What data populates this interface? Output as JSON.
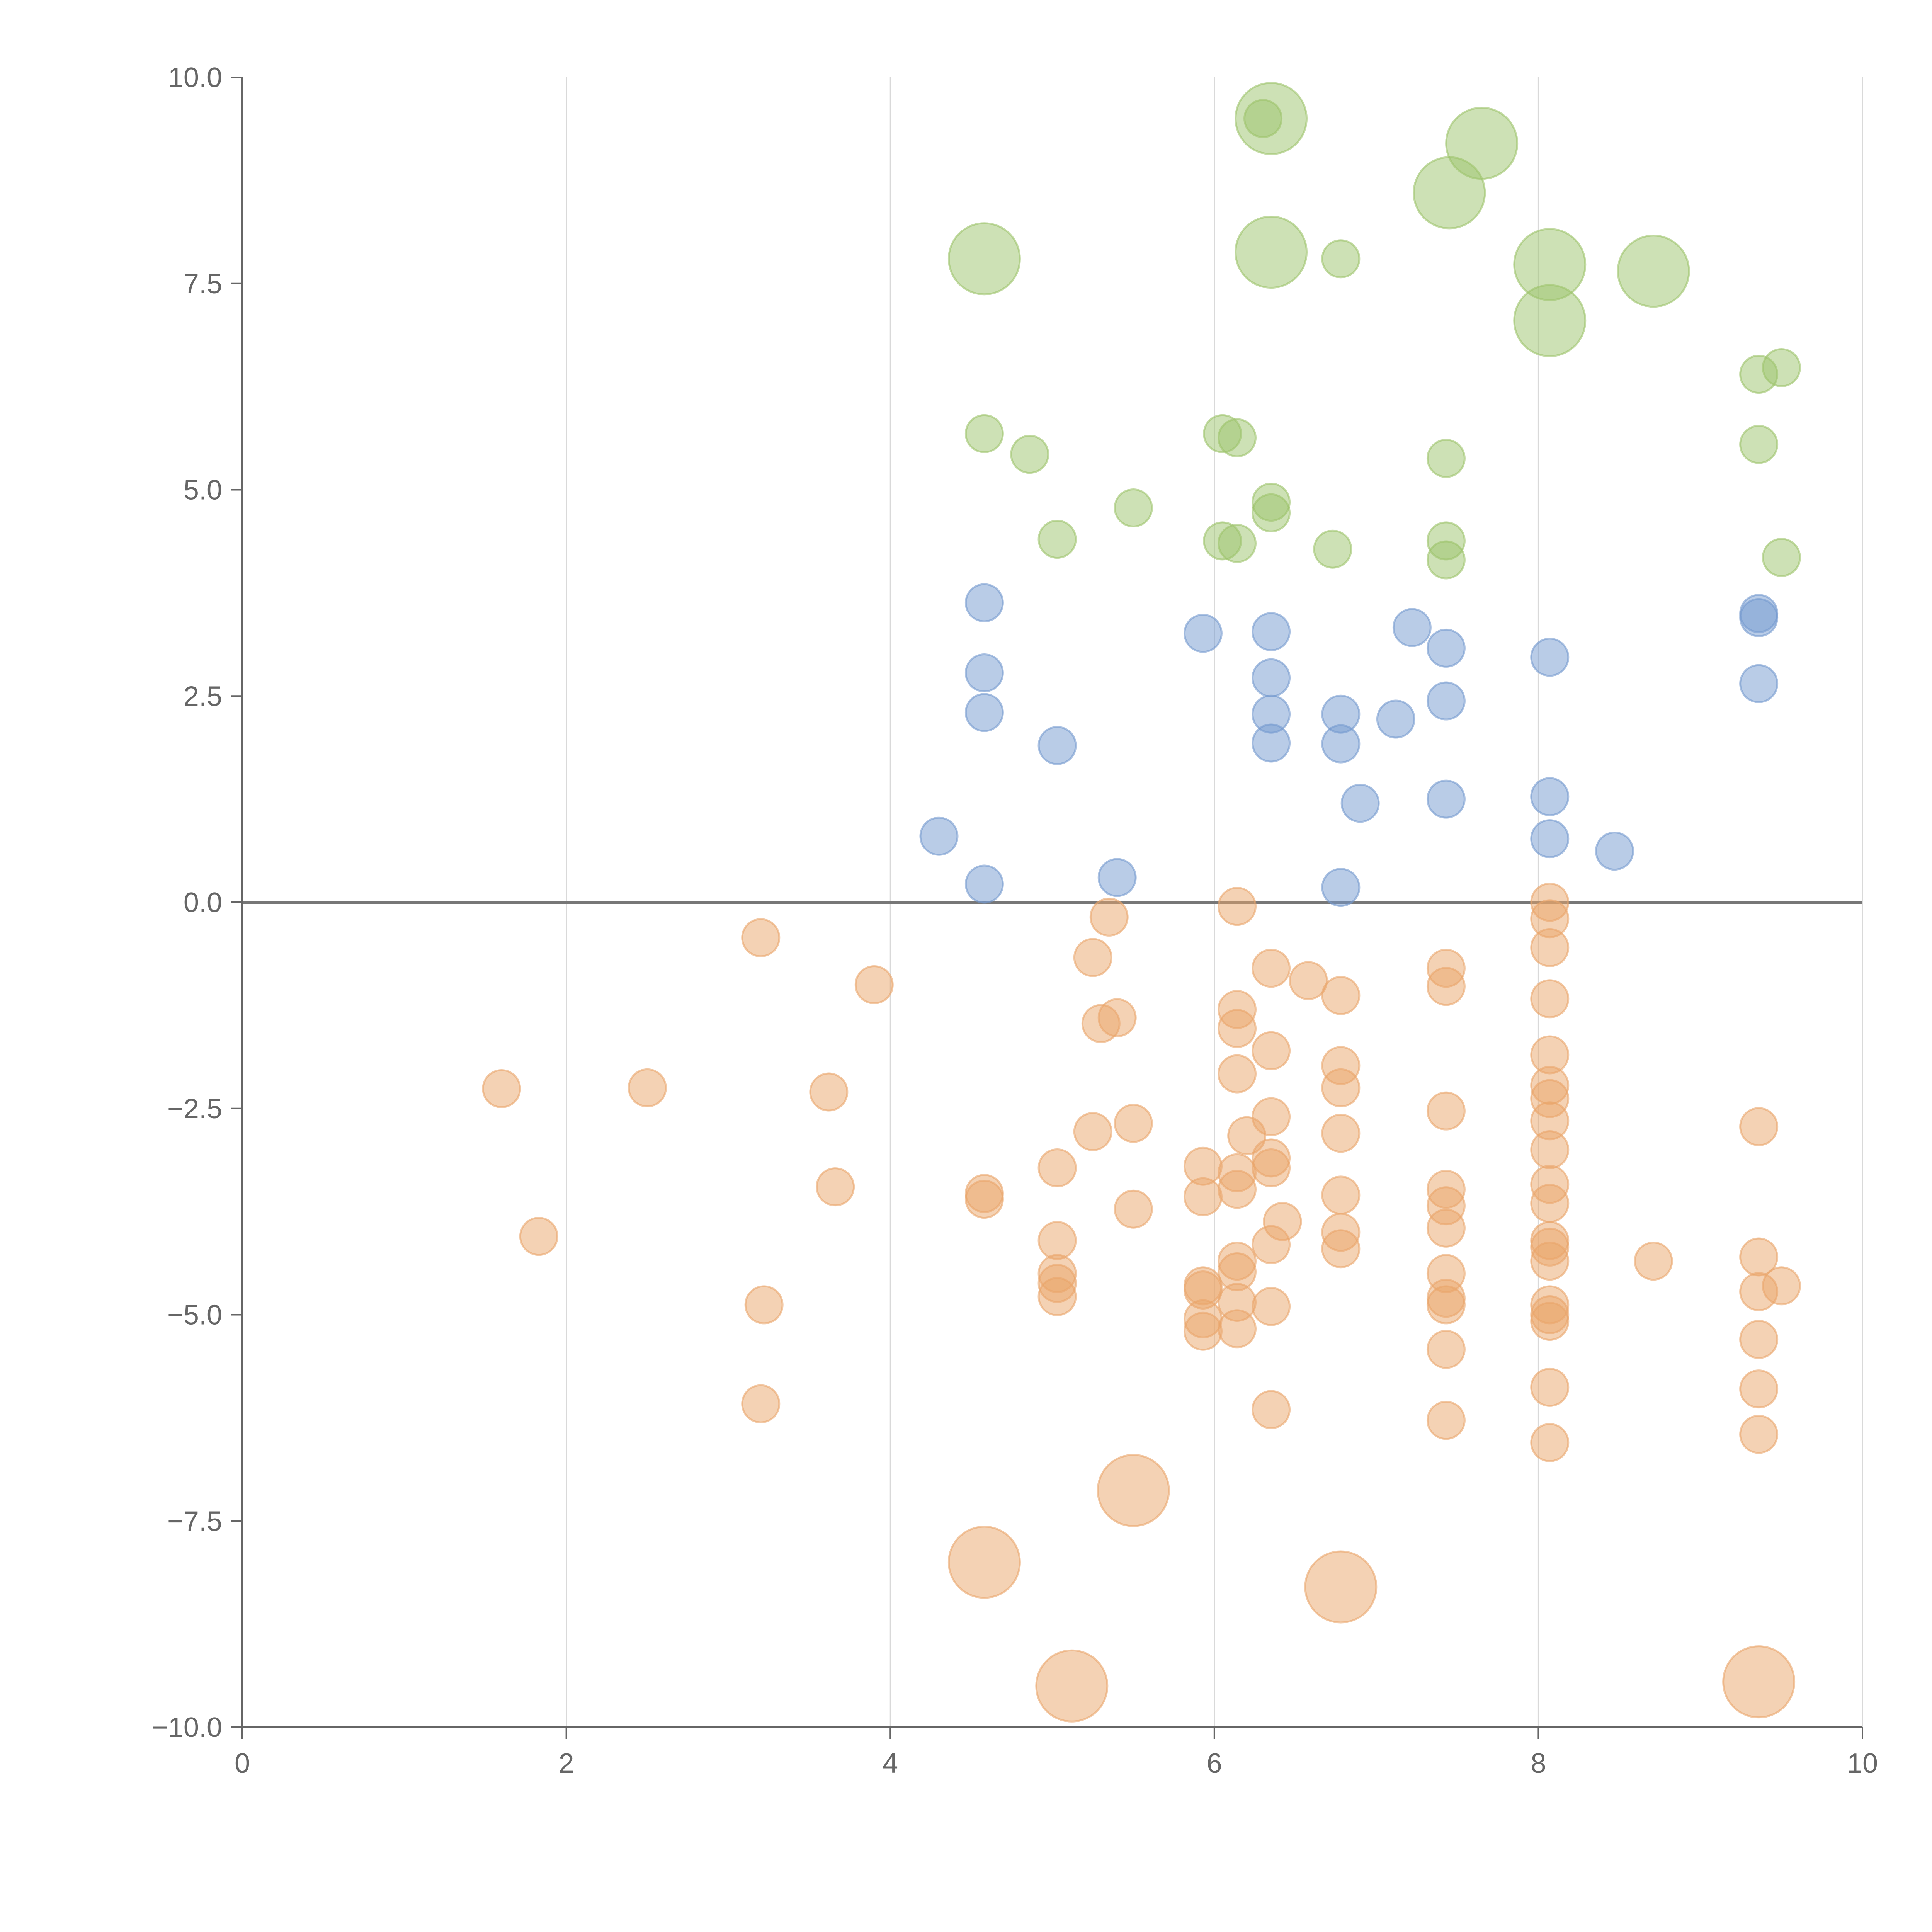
{
  "chart_data": {
    "type": "scatter",
    "title": "",
    "xlabel": "",
    "ylabel": "",
    "xlim": [
      0,
      10
    ],
    "ylim": [
      -10,
      10
    ],
    "grid": "vertical",
    "x_ticks": [
      0,
      2,
      4,
      6,
      8,
      10
    ],
    "x_tick_labels": [
      "0",
      "2",
      "4",
      "6",
      "8",
      "10"
    ],
    "y_ticks": [
      10,
      7.5,
      5,
      2.5,
      0,
      -2.5,
      -5,
      -7.5,
      -10
    ],
    "y_tick_labels": [
      "10.0",
      "7.5",
      "5.0",
      "2.5",
      "0.0",
      "−2.5",
      "−5.0",
      "−7.5",
      "−10.0"
    ],
    "reference_line_y": 0,
    "series": [
      {
        "color": "#9cc36b",
        "points": [
          [
            6.35,
            9.5,
            2
          ],
          [
            6.3,
            9.5,
            1
          ],
          [
            7.65,
            9.2,
            2
          ],
          [
            7.45,
            8.6,
            2
          ],
          [
            4.58,
            7.8,
            2
          ],
          [
            6.35,
            7.88,
            2
          ],
          [
            6.78,
            7.8,
            1
          ],
          [
            8.07,
            7.73,
            2
          ],
          [
            8.71,
            7.65,
            2
          ],
          [
            8.07,
            7.05,
            2
          ],
          [
            9.36,
            6.4,
            1
          ],
          [
            9.5,
            6.48,
            1
          ],
          [
            4.58,
            5.68,
            1
          ],
          [
            4.86,
            5.43,
            1
          ],
          [
            6.05,
            5.68,
            1
          ],
          [
            6.14,
            5.63,
            1
          ],
          [
            7.43,
            5.38,
            1
          ],
          [
            9.36,
            5.55,
            1
          ],
          [
            5.5,
            4.78,
            1
          ],
          [
            6.35,
            4.85,
            1
          ],
          [
            6.35,
            4.72,
            1
          ],
          [
            5.03,
            4.4,
            1
          ],
          [
            6.05,
            4.38,
            1
          ],
          [
            6.14,
            4.35,
            1
          ],
          [
            6.73,
            4.28,
            1
          ],
          [
            7.43,
            4.38,
            1
          ],
          [
            7.43,
            4.15,
            1
          ],
          [
            9.5,
            4.18,
            1
          ]
        ]
      },
      {
        "color": "#7499cf",
        "points": [
          [
            4.58,
            3.63,
            1
          ],
          [
            5.93,
            3.26,
            1
          ],
          [
            6.35,
            3.28,
            1
          ],
          [
            7.22,
            3.33,
            1
          ],
          [
            7.43,
            3.08,
            1
          ],
          [
            8.07,
            2.97,
            1
          ],
          [
            9.36,
            3.5,
            1
          ],
          [
            9.36,
            3.45,
            1
          ],
          [
            4.58,
            2.78,
            1
          ],
          [
            6.35,
            2.72,
            1
          ],
          [
            9.36,
            2.65,
            1
          ],
          [
            4.58,
            2.3,
            1
          ],
          [
            6.35,
            2.28,
            1
          ],
          [
            6.78,
            2.28,
            1
          ],
          [
            7.12,
            2.22,
            1
          ],
          [
            7.43,
            2.44,
            1
          ],
          [
            5.03,
            1.9,
            1
          ],
          [
            6.35,
            1.93,
            1
          ],
          [
            6.78,
            1.92,
            1
          ],
          [
            6.9,
            1.2,
            1
          ],
          [
            7.43,
            1.25,
            1
          ],
          [
            8.07,
            1.28,
            1
          ],
          [
            4.3,
            0.8,
            1
          ],
          [
            8.07,
            0.77,
            1
          ],
          [
            8.47,
            0.62,
            1
          ],
          [
            4.58,
            0.22,
            1
          ],
          [
            5.4,
            0.3,
            1
          ],
          [
            6.78,
            0.18,
            1
          ]
        ]
      },
      {
        "color": "#eaa56a",
        "points": [
          [
            6.14,
            -0.05,
            1
          ],
          [
            8.07,
            0.0,
            1
          ],
          [
            8.07,
            -0.2,
            1
          ],
          [
            3.2,
            -0.43,
            1
          ],
          [
            5.35,
            -0.18,
            1
          ],
          [
            5.25,
            -0.67,
            1
          ],
          [
            8.07,
            -0.55,
            1
          ],
          [
            6.35,
            -0.8,
            1
          ],
          [
            7.43,
            -0.8,
            1
          ],
          [
            3.9,
            -1.0,
            1
          ],
          [
            6.58,
            -0.95,
            1
          ],
          [
            7.43,
            -1.02,
            1
          ],
          [
            6.78,
            -1.13,
            1
          ],
          [
            8.07,
            -1.17,
            1
          ],
          [
            5.4,
            -1.4,
            1
          ],
          [
            5.3,
            -1.47,
            1
          ],
          [
            6.14,
            -1.3,
            1
          ],
          [
            6.14,
            -1.53,
            1
          ],
          [
            6.35,
            -1.8,
            1
          ],
          [
            8.07,
            -1.85,
            1
          ],
          [
            6.78,
            -1.98,
            1
          ],
          [
            6.14,
            -2.08,
            1
          ],
          [
            1.6,
            -2.26,
            1
          ],
          [
            2.5,
            -2.25,
            1
          ],
          [
            3.62,
            -2.3,
            1
          ],
          [
            6.78,
            -2.25,
            1
          ],
          [
            8.07,
            -2.22,
            1
          ],
          [
            8.07,
            -2.38,
            1
          ],
          [
            7.43,
            -2.53,
            1
          ],
          [
            6.35,
            -2.6,
            1
          ],
          [
            8.07,
            -2.65,
            1
          ],
          [
            5.25,
            -2.78,
            1
          ],
          [
            5.5,
            -2.68,
            1
          ],
          [
            6.2,
            -2.83,
            1
          ],
          [
            6.78,
            -2.8,
            1
          ],
          [
            9.36,
            -2.72,
            1
          ],
          [
            6.35,
            -3.1,
            1
          ],
          [
            6.35,
            -3.22,
            1
          ],
          [
            8.07,
            -3.0,
            1
          ],
          [
            5.03,
            -3.22,
            1
          ],
          [
            5.93,
            -3.2,
            1
          ],
          [
            6.14,
            -3.28,
            1
          ],
          [
            3.66,
            -3.45,
            1
          ],
          [
            4.58,
            -3.53,
            1
          ],
          [
            4.58,
            -3.6,
            1
          ],
          [
            5.93,
            -3.57,
            1
          ],
          [
            6.14,
            -3.48,
            1
          ],
          [
            6.78,
            -3.55,
            1
          ],
          [
            7.43,
            -3.48,
            1
          ],
          [
            7.43,
            -3.68,
            1
          ],
          [
            8.07,
            -3.42,
            1
          ],
          [
            8.07,
            -3.65,
            1
          ],
          [
            5.5,
            -3.72,
            1
          ],
          [
            6.42,
            -3.87,
            1
          ],
          [
            7.43,
            -3.95,
            1
          ],
          [
            6.78,
            -4.0,
            1
          ],
          [
            1.83,
            -4.05,
            1
          ],
          [
            5.03,
            -4.1,
            1
          ],
          [
            6.35,
            -4.15,
            1
          ],
          [
            6.78,
            -4.2,
            1
          ],
          [
            8.07,
            -4.1,
            1
          ],
          [
            8.07,
            -4.18,
            1
          ],
          [
            8.07,
            -4.35,
            1
          ],
          [
            8.71,
            -4.35,
            1
          ],
          [
            9.36,
            -4.3,
            1
          ],
          [
            6.14,
            -4.35,
            1
          ],
          [
            6.14,
            -4.48,
            1
          ],
          [
            5.03,
            -4.5,
            1
          ],
          [
            7.43,
            -4.5,
            1
          ],
          [
            5.03,
            -4.62,
            1
          ],
          [
            5.93,
            -4.65,
            1
          ],
          [
            5.93,
            -4.7,
            1
          ],
          [
            9.5,
            -4.65,
            1
          ],
          [
            9.36,
            -4.72,
            1
          ],
          [
            5.03,
            -4.78,
            1
          ],
          [
            7.43,
            -4.8,
            1
          ],
          [
            7.43,
            -4.88,
            1
          ],
          [
            6.14,
            -4.85,
            1
          ],
          [
            6.35,
            -4.9,
            1
          ],
          [
            3.22,
            -4.88,
            1
          ],
          [
            8.07,
            -4.88,
            1
          ],
          [
            8.07,
            -5.0,
            1
          ],
          [
            8.07,
            -5.08,
            1
          ],
          [
            5.93,
            -5.05,
            1
          ],
          [
            5.93,
            -5.2,
            1
          ],
          [
            6.14,
            -5.17,
            1
          ],
          [
            9.36,
            -5.3,
            1
          ],
          [
            7.43,
            -5.42,
            1
          ],
          [
            8.07,
            -5.88,
            1
          ],
          [
            9.36,
            -5.9,
            1
          ],
          [
            3.2,
            -6.08,
            1
          ],
          [
            6.35,
            -6.15,
            1
          ],
          [
            7.43,
            -6.28,
            1
          ],
          [
            8.07,
            -6.55,
            1
          ],
          [
            9.36,
            -6.45,
            1
          ],
          [
            5.5,
            -7.13,
            2
          ],
          [
            4.58,
            -8.0,
            2
          ],
          [
            6.78,
            -8.3,
            2
          ],
          [
            5.12,
            -9.5,
            2
          ],
          [
            9.36,
            -9.45,
            2
          ]
        ]
      }
    ]
  }
}
